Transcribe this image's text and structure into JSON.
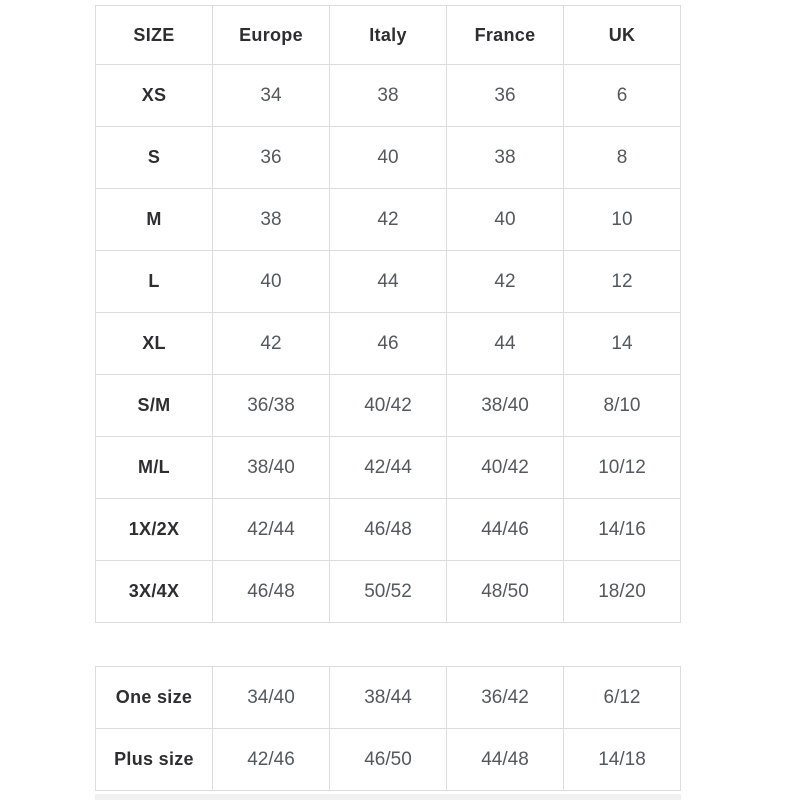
{
  "tables": {
    "main": {
      "headers": [
        "SIZE",
        "Europe",
        "Italy",
        "France",
        "UK"
      ],
      "rows": [
        {
          "label": "XS",
          "values": [
            "34",
            "38",
            "36",
            "6"
          ]
        },
        {
          "label": "S",
          "values": [
            "36",
            "40",
            "38",
            "8"
          ]
        },
        {
          "label": "M",
          "values": [
            "38",
            "42",
            "40",
            "10"
          ]
        },
        {
          "label": "L",
          "values": [
            "40",
            "44",
            "42",
            "12"
          ]
        },
        {
          "label": "XL",
          "values": [
            "42",
            "46",
            "44",
            "14"
          ]
        },
        {
          "label": "S/M",
          "values": [
            "36/38",
            "40/42",
            "38/40",
            "8/10"
          ]
        },
        {
          "label": "M/L",
          "values": [
            "38/40",
            "42/44",
            "40/42",
            "10/12"
          ]
        },
        {
          "label": "1X/2X",
          "values": [
            "42/44",
            "46/48",
            "44/46",
            "14/16"
          ]
        },
        {
          "label": "3X/4X",
          "values": [
            "46/48",
            "50/52",
            "48/50",
            "18/20"
          ]
        }
      ]
    },
    "secondary": {
      "rows": [
        {
          "label": "One size",
          "values": [
            "34/40",
            "38/44",
            "36/42",
            "6/12"
          ]
        },
        {
          "label": "Plus size",
          "values": [
            "42/46",
            "46/50",
            "44/48",
            "14/18"
          ]
        }
      ]
    }
  },
  "colors": {
    "header_text": "#2e2e30",
    "data_text": "#54595f",
    "border": "#dcdcde",
    "background": "#ffffff",
    "bottom_strip": "#f0f0f0"
  }
}
